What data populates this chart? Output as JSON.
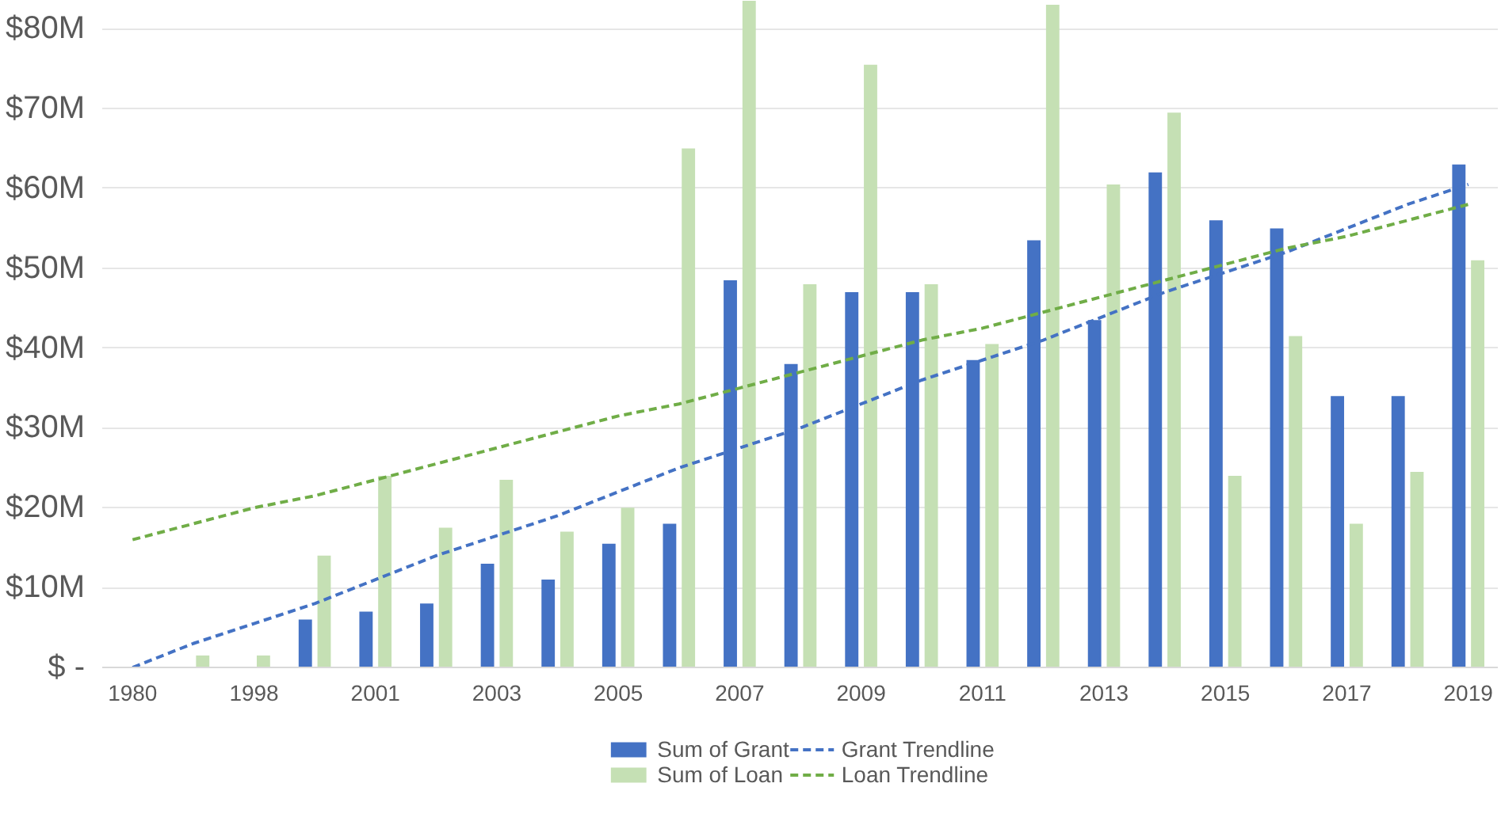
{
  "chart_data": {
    "type": "bar",
    "categories": [
      "1980",
      null,
      "1998",
      null,
      "2001",
      null,
      "2003",
      null,
      "2005",
      null,
      "2007",
      null,
      "2009",
      null,
      "2011",
      null,
      "2013",
      null,
      "2015",
      null,
      "2017",
      null,
      "2019"
    ],
    "series": [
      {
        "name": "Sum of Grant",
        "color": "#4472c4",
        "values": [
          0,
          0,
          0,
          6,
          7,
          8,
          13,
          11,
          15.5,
          18,
          48.5,
          38,
          47,
          47,
          38.5,
          53.5,
          43.5,
          62,
          56,
          55,
          34,
          34,
          63
        ]
      },
      {
        "name": "Sum of Loan",
        "color": "#c5e0b4",
        "values": [
          0,
          1.5,
          1.5,
          14,
          24,
          17.5,
          23.5,
          17,
          20,
          65,
          83.5,
          48,
          75.5,
          48,
          40.5,
          83,
          60.5,
          69.5,
          24,
          41.5,
          18,
          24.5,
          51
        ]
      },
      {
        "name": "Grant Trendline",
        "type": "line",
        "line_style": "dashed",
        "color": "#4472c4",
        "values": [
          0,
          3,
          5.5,
          8,
          11,
          14,
          16.5,
          19,
          22,
          25,
          27.5,
          30,
          33,
          36,
          38.5,
          41,
          44,
          47,
          49.5,
          52,
          55,
          58,
          60.5
        ]
      },
      {
        "name": "Loan Trendline",
        "type": "line",
        "line_style": "dashed",
        "color": "#70ad47",
        "values": [
          16,
          18,
          20,
          21.5,
          23.5,
          25.5,
          27.5,
          29.5,
          31.5,
          33,
          35,
          37,
          39,
          41,
          42.5,
          44.5,
          46.5,
          48.5,
          50.5,
          52.5,
          54,
          56,
          58
        ]
      }
    ],
    "ylim": [
      0,
      83.5
    ],
    "yticks": [
      {
        "value": 0,
        "label": "$ -"
      },
      {
        "value": 10,
        "label": "$10M"
      },
      {
        "value": 20,
        "label": "$20M"
      },
      {
        "value": 30,
        "label": "$30M"
      },
      {
        "value": 40,
        "label": "$40M"
      },
      {
        "value": 50,
        "label": "$50M"
      },
      {
        "value": 60,
        "label": "$60M"
      },
      {
        "value": 70,
        "label": "$70M"
      },
      {
        "value": 80,
        "label": "$80M"
      }
    ],
    "grid": "y",
    "legend": "bottom"
  }
}
